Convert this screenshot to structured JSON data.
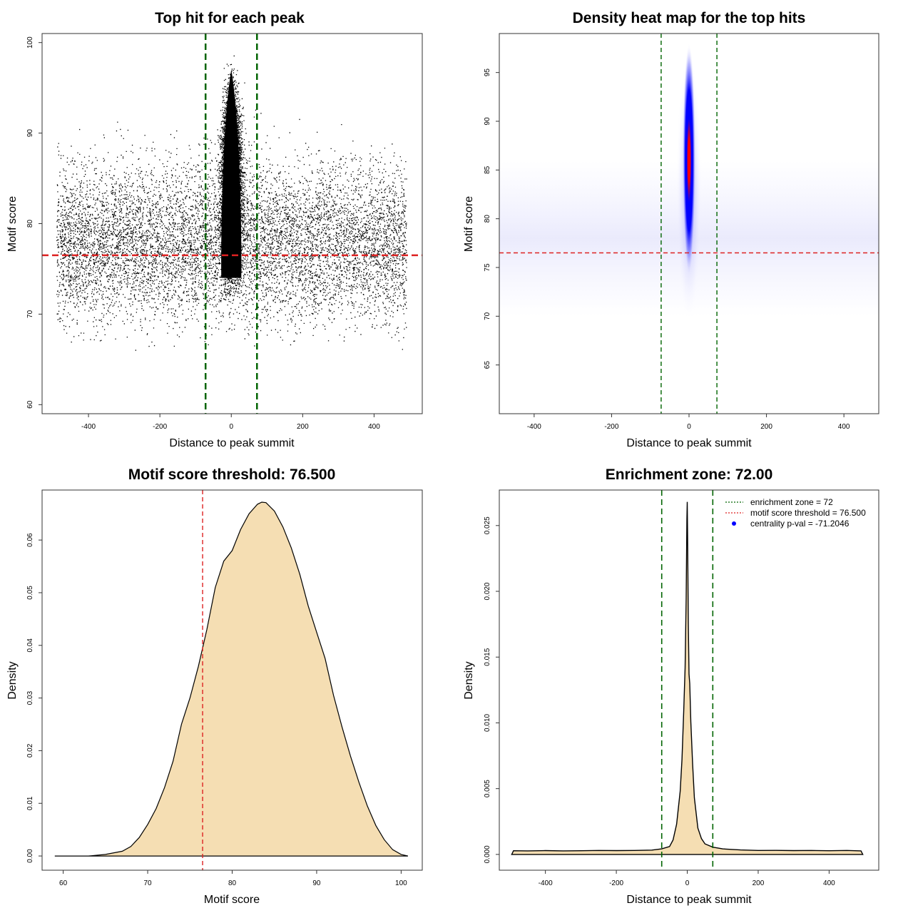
{
  "colors": {
    "scatter_points": "#000000",
    "threshold_line": "#dd2222",
    "zone_line": "#006400",
    "density_fill": "#f5deb3",
    "density_outline": "#000000",
    "heat_low": "#ffffff",
    "heat_mid": "#0000ff",
    "heat_high": "#ff0000",
    "legend_marker": "#0000ff"
  },
  "chart_data": [
    {
      "id": "scatter",
      "type": "scatter",
      "title": "Top hit for each peak",
      "xlabel": "Distance to peak summit",
      "ylabel": "Motif score",
      "xlim": [
        -530,
        535
      ],
      "ylim": [
        59,
        101
      ],
      "xticks": [
        -400,
        -200,
        0,
        200,
        400
      ],
      "yticks": [
        60,
        70,
        80,
        90,
        100
      ],
      "grid": false,
      "threshold_y": 76.5,
      "zone_x": [
        -72,
        72
      ],
      "distribution": {
        "central": {
          "x_range": [
            -40,
            40
          ],
          "y_range": [
            72,
            99
          ],
          "mode": 84
        },
        "background": {
          "x_range": [
            -490,
            490
          ],
          "y_range": [
            66,
            95
          ],
          "mode": 78
        }
      }
    },
    {
      "id": "heatmap",
      "type": "heatmap",
      "title": "Density heat map for the top hits",
      "xlabel": "Distance to peak summit",
      "ylabel": "Motif score",
      "xlim": [
        -490,
        490
      ],
      "ylim": [
        60,
        99
      ],
      "xticks": [
        -400,
        -200,
        0,
        200,
        400
      ],
      "yticks": [
        65,
        70,
        75,
        80,
        85,
        90,
        95
      ],
      "grid": false,
      "threshold_y": 76.5,
      "zone_x": [
        -72,
        72
      ],
      "hotspot": {
        "x": 0,
        "y": 86,
        "y_extent": [
          70,
          98
        ]
      }
    },
    {
      "id": "score-density",
      "type": "area",
      "title": "Motif score threshold: 76.500",
      "xlabel": "Motif score",
      "ylabel": "Density",
      "xlim": [
        57.5,
        102.5
      ],
      "ylim": [
        -0.0027,
        0.0695
      ],
      "xticks": [
        60,
        70,
        80,
        90,
        100
      ],
      "yticks": [
        0.0,
        0.01,
        0.02,
        0.03,
        0.04,
        0.05,
        0.06
      ],
      "ytick_labels": [
        "0.00",
        "0.01",
        "0.02",
        "0.03",
        "0.04",
        "0.05",
        "0.06"
      ],
      "grid": false,
      "threshold_x": 76.5,
      "x": [
        59,
        63,
        65,
        67,
        68,
        69,
        70,
        71,
        72,
        73,
        74,
        75,
        76,
        77,
        78,
        79,
        80,
        81,
        82,
        83,
        83.5,
        84,
        85,
        86,
        87,
        88,
        89,
        90,
        91,
        92,
        93,
        94,
        95,
        96,
        97,
        98,
        99,
        100,
        100.8
      ],
      "y": [
        0,
        0,
        0.0003,
        0.0009,
        0.0018,
        0.0035,
        0.006,
        0.009,
        0.013,
        0.018,
        0.025,
        0.03,
        0.036,
        0.043,
        0.051,
        0.056,
        0.058,
        0.062,
        0.065,
        0.0668,
        0.0672,
        0.0671,
        0.0655,
        0.0625,
        0.0585,
        0.0535,
        0.0475,
        0.0425,
        0.0375,
        0.0305,
        0.0245,
        0.019,
        0.014,
        0.0095,
        0.0058,
        0.0031,
        0.0012,
        0.0003,
        0
      ]
    },
    {
      "id": "distance-density",
      "type": "area",
      "title": "Enrichment zone: 72.00",
      "xlabel": "Distance to peak summit",
      "ylabel": "Density",
      "xlim": [
        -530,
        540
      ],
      "ylim": [
        -0.0012,
        0.0277
      ],
      "xticks": [
        -400,
        -200,
        0,
        200,
        400
      ],
      "yticks": [
        0.0,
        0.005,
        0.01,
        0.015,
        0.02,
        0.025
      ],
      "ytick_labels": [
        "0.000",
        "0.005",
        "0.010",
        "0.015",
        "0.020",
        "0.025"
      ],
      "grid": false,
      "zone_x": [
        -72,
        72
      ],
      "x": [
        -495,
        -490,
        -450,
        -400,
        -350,
        -300,
        -250,
        -200,
        -150,
        -100,
        -72,
        -50,
        -40,
        -30,
        -20,
        -15,
        -10,
        -6,
        -3,
        -1,
        0,
        1,
        3,
        5,
        7,
        10,
        15,
        20,
        30,
        40,
        50,
        72,
        100,
        150,
        200,
        250,
        300,
        350,
        400,
        450,
        490,
        495
      ],
      "y": [
        0,
        0.00028,
        0.00027,
        0.00029,
        0.00027,
        0.00028,
        0.0003,
        0.00029,
        0.0003,
        0.00033,
        0.00042,
        0.0006,
        0.0011,
        0.0023,
        0.0048,
        0.0072,
        0.0108,
        0.0142,
        0.0195,
        0.0255,
        0.0268,
        0.0242,
        0.0175,
        0.0137,
        0.013,
        0.0101,
        0.0069,
        0.0043,
        0.002,
        0.0012,
        0.0008,
        0.00055,
        0.00042,
        0.00034,
        0.0003,
        0.00031,
        0.00029,
        0.0003,
        0.00028,
        0.0003,
        0.00027,
        0
      ],
      "legend": {
        "position": "top-right",
        "entries": [
          {
            "label": "enrichment zone = 72",
            "style": "dotted-line",
            "color": "#006400"
          },
          {
            "label": "motif score threshold = 76.500",
            "style": "dotted-line",
            "color": "#dd2222"
          },
          {
            "label": "centrality p-val = -71.2046",
            "style": "point",
            "color": "#0000ff"
          }
        ]
      }
    }
  ]
}
